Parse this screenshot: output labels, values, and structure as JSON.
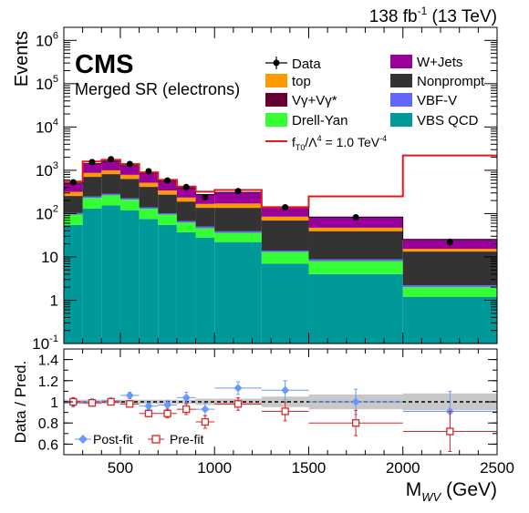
{
  "header": {
    "lumi": "138 fb",
    "lumi_exp": "-1",
    "energy": "(13 TeV)",
    "experiment": "CMS",
    "region": "Merged SR (electrons)"
  },
  "colors": {
    "vbs_qcd": "#009999",
    "drell_yan": "#33ff33",
    "vbf_v": "#6666ff",
    "nonprompt": "#333333",
    "vgamma": "#660033",
    "top": "#ff9900",
    "wjets": "#990099",
    "signal": "#e31a1c",
    "postfit": "#6699ff",
    "prefit": "#d62728",
    "band": "#c8c8c8"
  },
  "legend": {
    "data": "Data",
    "top": "top",
    "vgamma": "Vγ+Vγ*",
    "drell_yan": "Drell-Yan",
    "signal_prefix": "f",
    "signal_sub": "T0",
    "signal_mid": "/Λ",
    "signal_pow": "4",
    "signal_val": " = 1.0 TeV",
    "signal_unit_pow": "-4",
    "wjets": "W+Jets",
    "nonprompt": "Nonprompt",
    "vbf_v": "VBF-V",
    "vbs_qcd": "VBS QCD"
  },
  "ratio_legend": {
    "postfit": "Post-fit",
    "prefit": "Pre-fit"
  },
  "chart_data": [
    {
      "type": "bar",
      "stacked": true,
      "ylabel": "Events",
      "yscale": "log",
      "xlim": [
        200,
        2500
      ],
      "ylim": [
        0.1,
        2000000
      ],
      "bin_edges": [
        200,
        300,
        400,
        500,
        600,
        700,
        800,
        900,
        1000,
        1250,
        1500,
        2000,
        2500
      ],
      "series": [
        {
          "name": "VBS QCD",
          "key": "vbs_qcd",
          "values": [
            55,
            130,
            155,
            120,
            75,
            55,
            37,
            28,
            22,
            7,
            4,
            1.2
          ]
        },
        {
          "name": "Drell-Yan",
          "key": "drell_yan",
          "values": [
            40,
            100,
            110,
            90,
            55,
            40,
            25,
            18,
            14,
            6,
            4,
            0.8
          ]
        },
        {
          "name": "VBF-V",
          "key": "vbf_v",
          "values": [
            8,
            18,
            20,
            16,
            10,
            7,
            5,
            4,
            3,
            1,
            0.8,
            0.2
          ]
        },
        {
          "name": "Nonprompt",
          "key": "nonprompt",
          "values": [
            150,
            450,
            520,
            400,
            270,
            170,
            120,
            85,
            95,
            55,
            30,
            11
          ]
        },
        {
          "name": "Vγ+Vγ*",
          "key": "vgamma",
          "values": [
            5,
            12,
            13,
            10,
            7,
            5,
            3,
            2.5,
            2,
            1,
            0.5,
            0.2
          ]
        },
        {
          "name": "top",
          "key": "top",
          "values": [
            60,
            160,
            180,
            150,
            100,
            65,
            45,
            30,
            35,
            15,
            8,
            2
          ]
        },
        {
          "name": "W+Jets",
          "key": "wjets",
          "values": [
            190,
            560,
            620,
            500,
            340,
            220,
            160,
            110,
            140,
            60,
            36,
            10
          ]
        }
      ],
      "data_points": {
        "name": "Data",
        "x": [
          250,
          350,
          450,
          550,
          650,
          750,
          850,
          950,
          1125,
          1375,
          1750,
          2250
        ],
        "y": [
          530,
          1550,
          1800,
          1400,
          950,
          580,
          410,
          240,
          330,
          140,
          82,
          22
        ]
      },
      "signal_line": {
        "values": [
          550,
          1600,
          1750,
          1400,
          900,
          600,
          420,
          320,
          350,
          140,
          250,
          2200
        ]
      },
      "xticks": [
        500,
        1000,
        1500,
        2000,
        2500
      ],
      "yticks": [
        {
          "value": 0.1,
          "base": "10",
          "exp": "-1"
        },
        {
          "value": 1,
          "base": "1",
          "exp": ""
        },
        {
          "value": 10,
          "base": "10",
          "exp": ""
        },
        {
          "value": 100,
          "base": "10",
          "exp": "2"
        },
        {
          "value": 1000,
          "base": "10",
          "exp": "3"
        },
        {
          "value": 10000,
          "base": "10",
          "exp": "4"
        },
        {
          "value": 100000,
          "base": "10",
          "exp": "5"
        },
        {
          "value": 1000000,
          "base": "10",
          "exp": "6"
        }
      ]
    },
    {
      "type": "scatter",
      "xlabel": "M",
      "xlabel_sub": "WV",
      "xlabel_unit": " (GeV)",
      "ylabel": "Data / Pred.",
      "xlim": [
        200,
        2500
      ],
      "ylim": [
        0.5,
        1.5
      ],
      "yticks": [
        0.6,
        0.8,
        1,
        1.2,
        1.4
      ],
      "xticks": [
        500,
        1000,
        1500,
        2000,
        2500
      ],
      "reference_line": 1.0,
      "band_halfwidth": [
        0.02,
        0.02,
        0.02,
        0.02,
        0.02,
        0.02,
        0.02,
        0.03,
        0.03,
        0.05,
        0.07,
        0.08
      ],
      "series": [
        {
          "name": "Post-fit",
          "key": "postfit",
          "x": [
            250,
            350,
            450,
            550,
            650,
            750,
            850,
            950,
            1125,
            1375,
            1750,
            2250
          ],
          "y": [
            0.99,
            1.0,
            1.01,
            1.06,
            0.96,
            0.97,
            1.04,
            0.93,
            1.13,
            1.11,
            1.0,
            0.91
          ],
          "yerr": [
            0.04,
            0.03,
            0.03,
            0.03,
            0.03,
            0.04,
            0.05,
            0.06,
            0.06,
            0.09,
            0.12,
            0.19
          ]
        },
        {
          "name": "Pre-fit",
          "key": "prefit",
          "x": [
            250,
            350,
            450,
            550,
            650,
            750,
            850,
            950,
            1125,
            1375,
            1750,
            2250
          ],
          "y": [
            1.0,
            0.99,
            1.0,
            0.98,
            0.89,
            0.89,
            0.93,
            0.81,
            0.98,
            0.91,
            0.8,
            0.72
          ],
          "yerr": [
            0.04,
            0.03,
            0.03,
            0.03,
            0.03,
            0.04,
            0.05,
            0.06,
            0.06,
            0.09,
            0.12,
            0.19
          ]
        }
      ]
    }
  ]
}
